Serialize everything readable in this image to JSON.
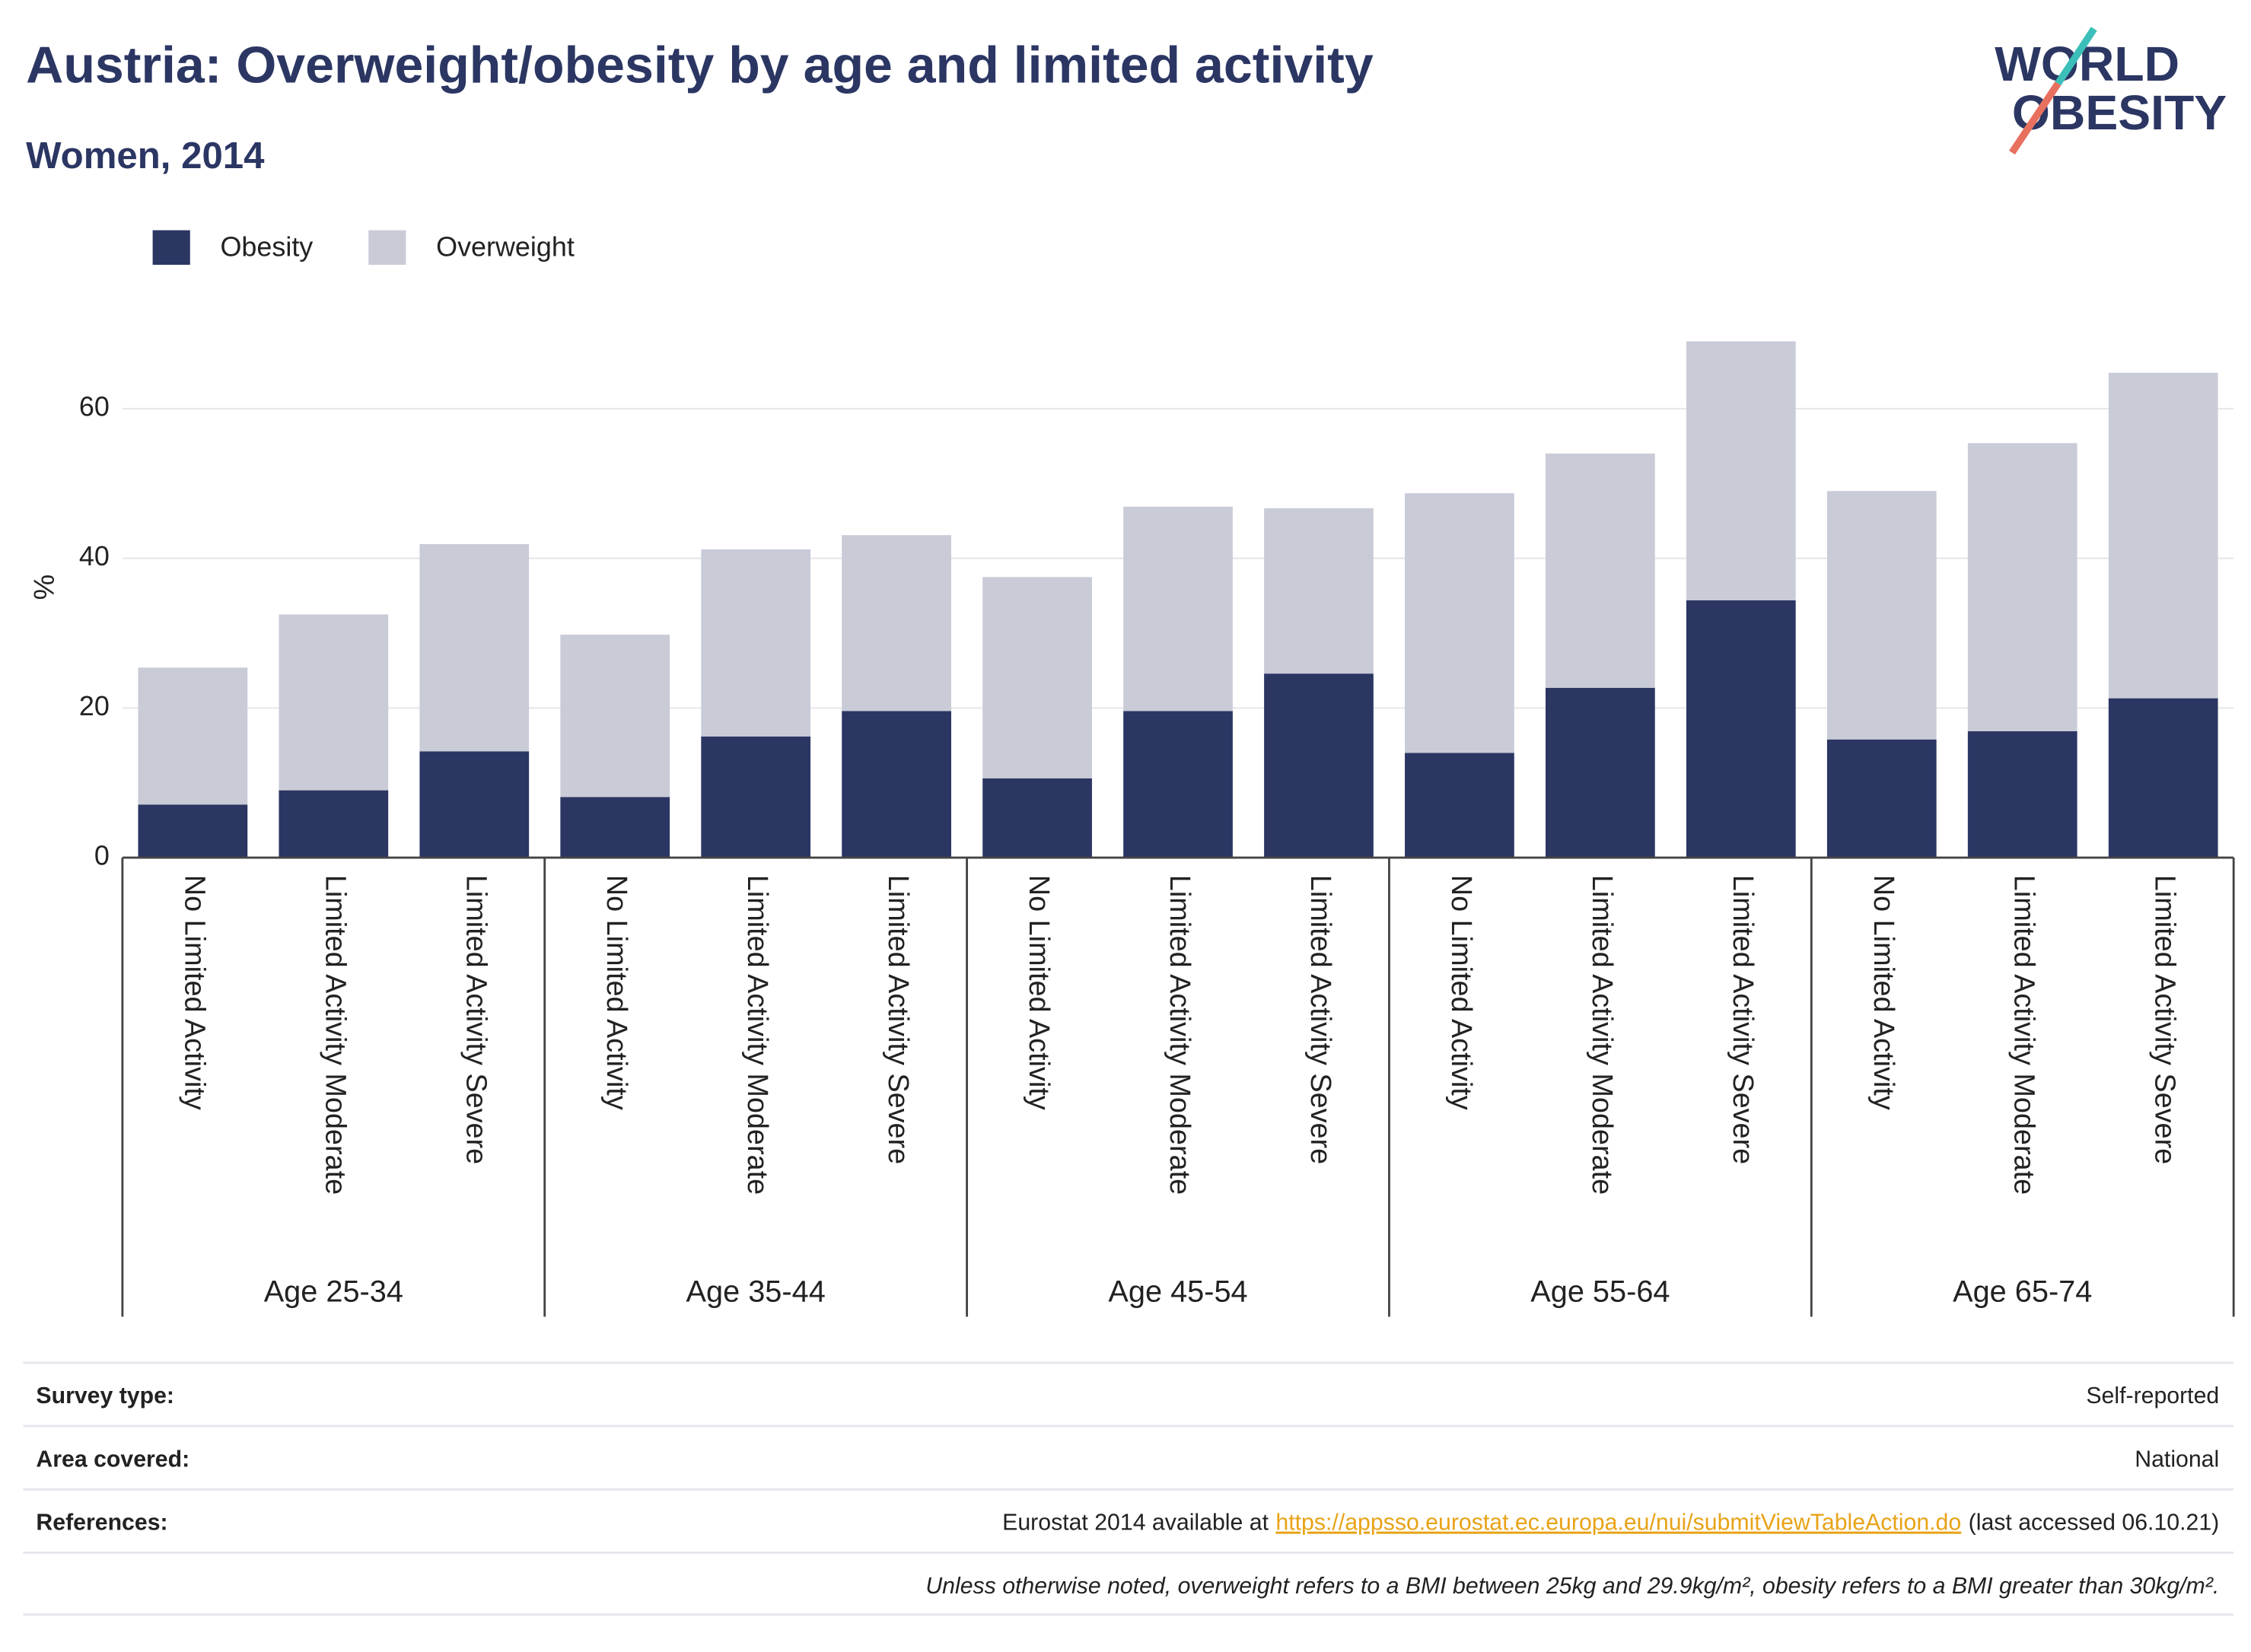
{
  "logo": {
    "line1": "WORLD",
    "line2": "OBESITY"
  },
  "chart_data": {
    "type": "stacked_bar",
    "title": "Austria: Overweight/obesity by age and limited activity",
    "subtitle": "Women, 2014",
    "y_label": "%",
    "groups": [
      {
        "name": "Age 25-34",
        "categories": [
          "No Limited Activity",
          "Limited Activity Moderate",
          "Limited Activity Severe"
        ]
      },
      {
        "name": "Age 35-44",
        "categories": [
          "No Limited Activity",
          "Limited Activity Moderate",
          "Limited Activity Severe"
        ]
      },
      {
        "name": "Age 45-54",
        "categories": [
          "No Limited Activity",
          "Limited Activity Moderate",
          "Limited Activity Severe"
        ]
      },
      {
        "name": "Age 55-64",
        "categories": [
          "No Limited Activity",
          "Limited Activity Moderate",
          "Limited Activity Severe"
        ]
      },
      {
        "name": "Age 65-74",
        "categories": [
          "No Limited Activity",
          "Limited Activity Moderate",
          "Limited Activity Severe"
        ]
      }
    ],
    "series": [
      {
        "name": "Obesity",
        "color": "#2b3663",
        "values": [
          7.1,
          9.0,
          14.2,
          8.1,
          16.2,
          19.6,
          10.6,
          19.6,
          24.6,
          14.0,
          22.7,
          34.4,
          15.8,
          16.9,
          21.3
        ]
      },
      {
        "name": "Overweight",
        "color": "#c9cbd7",
        "values": [
          18.3,
          23.5,
          27.7,
          21.7,
          25.0,
          23.5,
          26.9,
          27.3,
          22.1,
          34.7,
          31.3,
          34.6,
          33.2,
          38.5,
          43.5
        ]
      }
    ],
    "ylim": [
      0,
      70
    ],
    "yticks": [
      0,
      20,
      40,
      60
    ],
    "grid": true,
    "legend": "top-left"
  },
  "footer": {
    "rows": [
      {
        "label": "Survey type:",
        "value": "Self-reported"
      },
      {
        "label": "Area covered:",
        "value": "National"
      }
    ],
    "references": {
      "label": "References:",
      "text": "Eurostat 2014 available at",
      "link": "https://appsso.eurostat.ec.europa.eu/nui/submitViewTableAction.do",
      "suffix": "(last accessed 06.10.21)"
    },
    "note": "Unless otherwise noted, overweight refers to a BMI between 25kg and 29.9kg/m², obesity refers to a BMI greater than 30kg/m²."
  }
}
